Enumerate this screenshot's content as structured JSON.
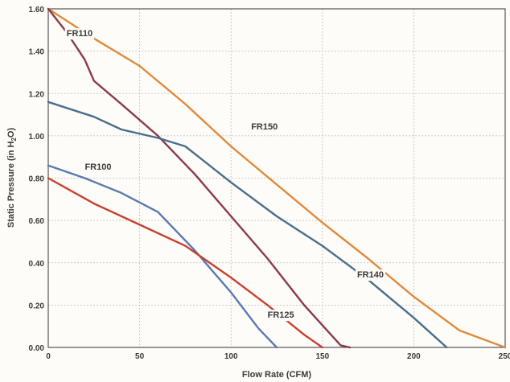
{
  "chart_data": {
    "type": "line",
    "title": "",
    "xlabel": "Flow Rate (CFM)",
    "ylabel": "Static Pressure (in H2O)",
    "ylabel_parts": {
      "pre": "Static Pressure (in H",
      "sub": "2",
      "post": "O)"
    },
    "xlim": [
      0,
      250
    ],
    "ylim": [
      0,
      1.6
    ],
    "x_ticks": [
      0,
      50,
      100,
      150,
      200,
      250
    ],
    "x_tick_labels": [
      "0",
      "50",
      "100",
      "150",
      "200",
      "250"
    ],
    "y_ticks": [
      0,
      0.2,
      0.4,
      0.6,
      0.8,
      1.0,
      1.2,
      1.4,
      1.6
    ],
    "y_tick_labels": [
      "0.00",
      "0.20",
      "0.40",
      "0.60",
      "0.80",
      "1.00",
      "1.20",
      "1.40",
      "1.60"
    ],
    "grid": true,
    "legend": "none",
    "series": [
      {
        "name": "FR150",
        "color": "#e08a3c",
        "label_at": [
          111,
          1.03
        ],
        "points": [
          [
            0,
            1.6
          ],
          [
            25,
            1.46
          ],
          [
            50,
            1.33
          ],
          [
            75,
            1.15
          ],
          [
            100,
            0.95
          ],
          [
            125,
            0.77
          ],
          [
            150,
            0.59
          ],
          [
            175,
            0.42
          ],
          [
            200,
            0.24
          ],
          [
            225,
            0.08
          ],
          [
            250,
            0.0
          ]
        ]
      },
      {
        "name": "FR110",
        "color": "#8b3a4a",
        "label_at": [
          10,
          1.47
        ],
        "points": [
          [
            0,
            1.6
          ],
          [
            10,
            1.49
          ],
          [
            20,
            1.36
          ],
          [
            25,
            1.26
          ],
          [
            40,
            1.15
          ],
          [
            60,
            1.0
          ],
          [
            80,
            0.82
          ],
          [
            100,
            0.62
          ],
          [
            120,
            0.42
          ],
          [
            140,
            0.2
          ],
          [
            160,
            0.01
          ],
          [
            165,
            0.0
          ]
        ]
      },
      {
        "name": "FR140",
        "color": "#4a6e8a",
        "label_at": [
          169,
          0.33
        ],
        "points": [
          [
            0,
            1.16
          ],
          [
            25,
            1.09
          ],
          [
            40,
            1.03
          ],
          [
            60,
            0.99
          ],
          [
            75,
            0.95
          ],
          [
            100,
            0.78
          ],
          [
            125,
            0.62
          ],
          [
            150,
            0.48
          ],
          [
            175,
            0.32
          ],
          [
            200,
            0.14
          ],
          [
            218,
            0.0
          ]
        ]
      },
      {
        "name": "FR100",
        "color": "#5a7ab0",
        "label_at": [
          20,
          0.84
        ],
        "points": [
          [
            0,
            0.86
          ],
          [
            20,
            0.8
          ],
          [
            40,
            0.73
          ],
          [
            60,
            0.64
          ],
          [
            80,
            0.46
          ],
          [
            100,
            0.26
          ],
          [
            115,
            0.09
          ],
          [
            125,
            0.0
          ]
        ]
      },
      {
        "name": "FR125",
        "color": "#c83f2e",
        "label_at": [
          120,
          0.14
        ],
        "points": [
          [
            0,
            0.8
          ],
          [
            25,
            0.68
          ],
          [
            50,
            0.58
          ],
          [
            75,
            0.48
          ],
          [
            100,
            0.33
          ],
          [
            120,
            0.2
          ],
          [
            140,
            0.06
          ],
          [
            150,
            0.0
          ]
        ]
      }
    ]
  }
}
